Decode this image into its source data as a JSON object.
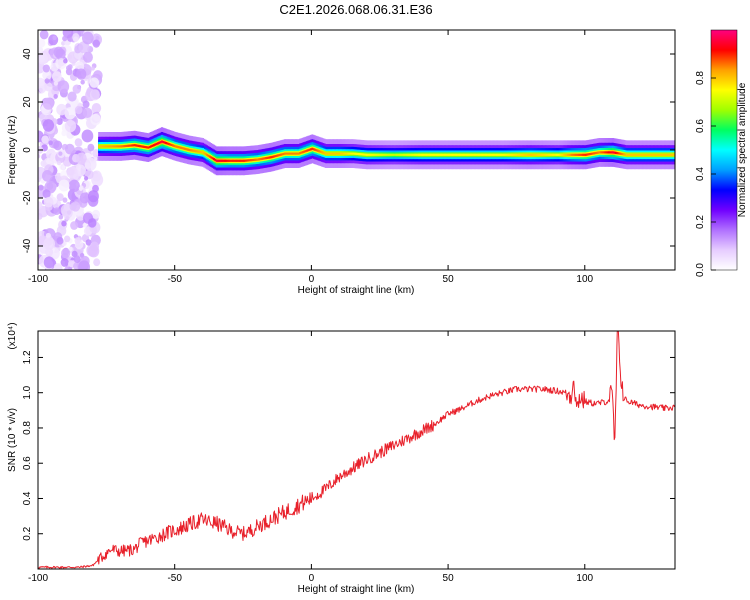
{
  "figure": {
    "title": "C2E1.2026.068.06.31.E36"
  },
  "chart_data": [
    {
      "type": "heatmap",
      "title": "C2E1.2026.068.06.31.E36",
      "xlabel": "Height of straight line (km)",
      "ylabel": "Frequency (Hz)",
      "xlim": [
        -100,
        133
      ],
      "ylim": [
        -50,
        50
      ],
      "xticks": [
        -100,
        -50,
        0,
        50,
        100
      ],
      "yticks": [
        -40,
        -20,
        0,
        20,
        40
      ],
      "colorbar": {
        "label": "Normalized spectral amplitude",
        "range": [
          0,
          1
        ],
        "ticks": [
          0.0,
          0.2,
          0.4,
          0.6,
          0.8
        ],
        "tick_labels": [
          "0.0",
          "0.2",
          "0.4",
          "0.6",
          "0.8"
        ],
        "colormap": [
          "#ffffff",
          "#e6ccff",
          "#b070ff",
          "#7000ff",
          "#0000ff",
          "#00a0ff",
          "#00ffff",
          "#00ff60",
          "#a0ff00",
          "#ffff00",
          "#ffa000",
          "#ff0000",
          "#ff0080"
        ]
      },
      "noise_region": {
        "x_range": [
          -100,
          -78
        ],
        "freq_range": [
          -50,
          50
        ],
        "level": "low"
      },
      "ridge": {
        "x": [
          -78,
          -70,
          -65,
          -60,
          -55,
          -50,
          -45,
          -40,
          -35,
          -30,
          -25,
          -20,
          -15,
          -10,
          -5,
          0,
          5,
          10,
          15,
          20,
          30,
          40,
          50,
          60,
          70,
          80,
          90,
          95,
          100,
          105,
          110,
          115,
          120,
          125,
          133
        ],
        "freq": [
          1.5,
          1.5,
          2,
          1,
          3.5,
          1.5,
          0,
          -1,
          -4.5,
          -4.5,
          -4.5,
          -4,
          -3,
          -1.5,
          -1.5,
          0.5,
          -1.5,
          -1.5,
          -1.5,
          -2,
          -2,
          -2,
          -2,
          -2,
          -2,
          -2,
          -2,
          -2,
          -2,
          -1,
          -1,
          -2,
          -2,
          -2,
          -2
        ],
        "amplitude": [
          0.8,
          0.85,
          0.9,
          0.9,
          0.95,
          0.85,
          0.85,
          0.8,
          0.95,
          0.9,
          0.9,
          0.85,
          0.9,
          0.85,
          0.85,
          0.9,
          0.8,
          0.8,
          0.75,
          0.75,
          0.7,
          0.75,
          0.75,
          0.75,
          0.75,
          0.8,
          0.75,
          0.85,
          0.9,
          0.85,
          0.95,
          0.8,
          0.8,
          0.8,
          0.8
        ]
      }
    },
    {
      "type": "line",
      "xlabel": "Height of straight line (km)",
      "ylabel": "SNR (10 * v/v)",
      "y_multiplier": "(x10⁴)",
      "xlim": [
        -100,
        133
      ],
      "ylim": [
        0,
        1.35
      ],
      "xticks": [
        -100,
        -50,
        0,
        50,
        100
      ],
      "yticks": [
        0.2,
        0.4,
        0.6,
        0.8,
        1.0,
        1.2
      ],
      "ytick_labels": [
        "0.2",
        "0.4",
        "0.6",
        "0.8",
        "1.0",
        "1.2"
      ],
      "series": [
        {
          "color": "#e8202a",
          "x": [
            -100,
            -85,
            -80,
            -78,
            -75,
            -73,
            -70,
            -65,
            -62,
            -58,
            -55,
            -52,
            -48,
            -45,
            -40,
            -38,
            -35,
            -32,
            -30,
            -25,
            -22,
            -20,
            -15,
            -10,
            -5,
            0,
            5,
            10,
            15,
            20,
            25,
            30,
            35,
            40,
            45,
            50,
            55,
            60,
            65,
            70,
            75,
            80,
            85,
            90,
            93,
            95,
            96,
            97,
            98,
            100,
            103,
            105,
            108,
            110,
            111,
            112,
            114,
            116,
            120,
            125,
            130,
            133
          ],
          "y": [
            0.01,
            0.01,
            0.02,
            0.05,
            0.09,
            0.11,
            0.1,
            0.11,
            0.15,
            0.17,
            0.19,
            0.21,
            0.23,
            0.25,
            0.28,
            0.27,
            0.26,
            0.24,
            0.22,
            0.2,
            0.22,
            0.24,
            0.28,
            0.32,
            0.36,
            0.4,
            0.45,
            0.52,
            0.57,
            0.62,
            0.66,
            0.7,
            0.74,
            0.78,
            0.82,
            0.88,
            0.91,
            0.95,
            0.98,
            1.0,
            1.02,
            1.02,
            1.02,
            1.01,
            1.0,
            0.98,
            1.1,
            0.9,
            0.98,
            0.95,
            0.94,
            0.94,
            0.95,
            0.97,
            0.7,
            1.35,
            0.97,
            0.95,
            0.93,
            0.92,
            0.91,
            0.92
          ]
        }
      ]
    }
  ]
}
